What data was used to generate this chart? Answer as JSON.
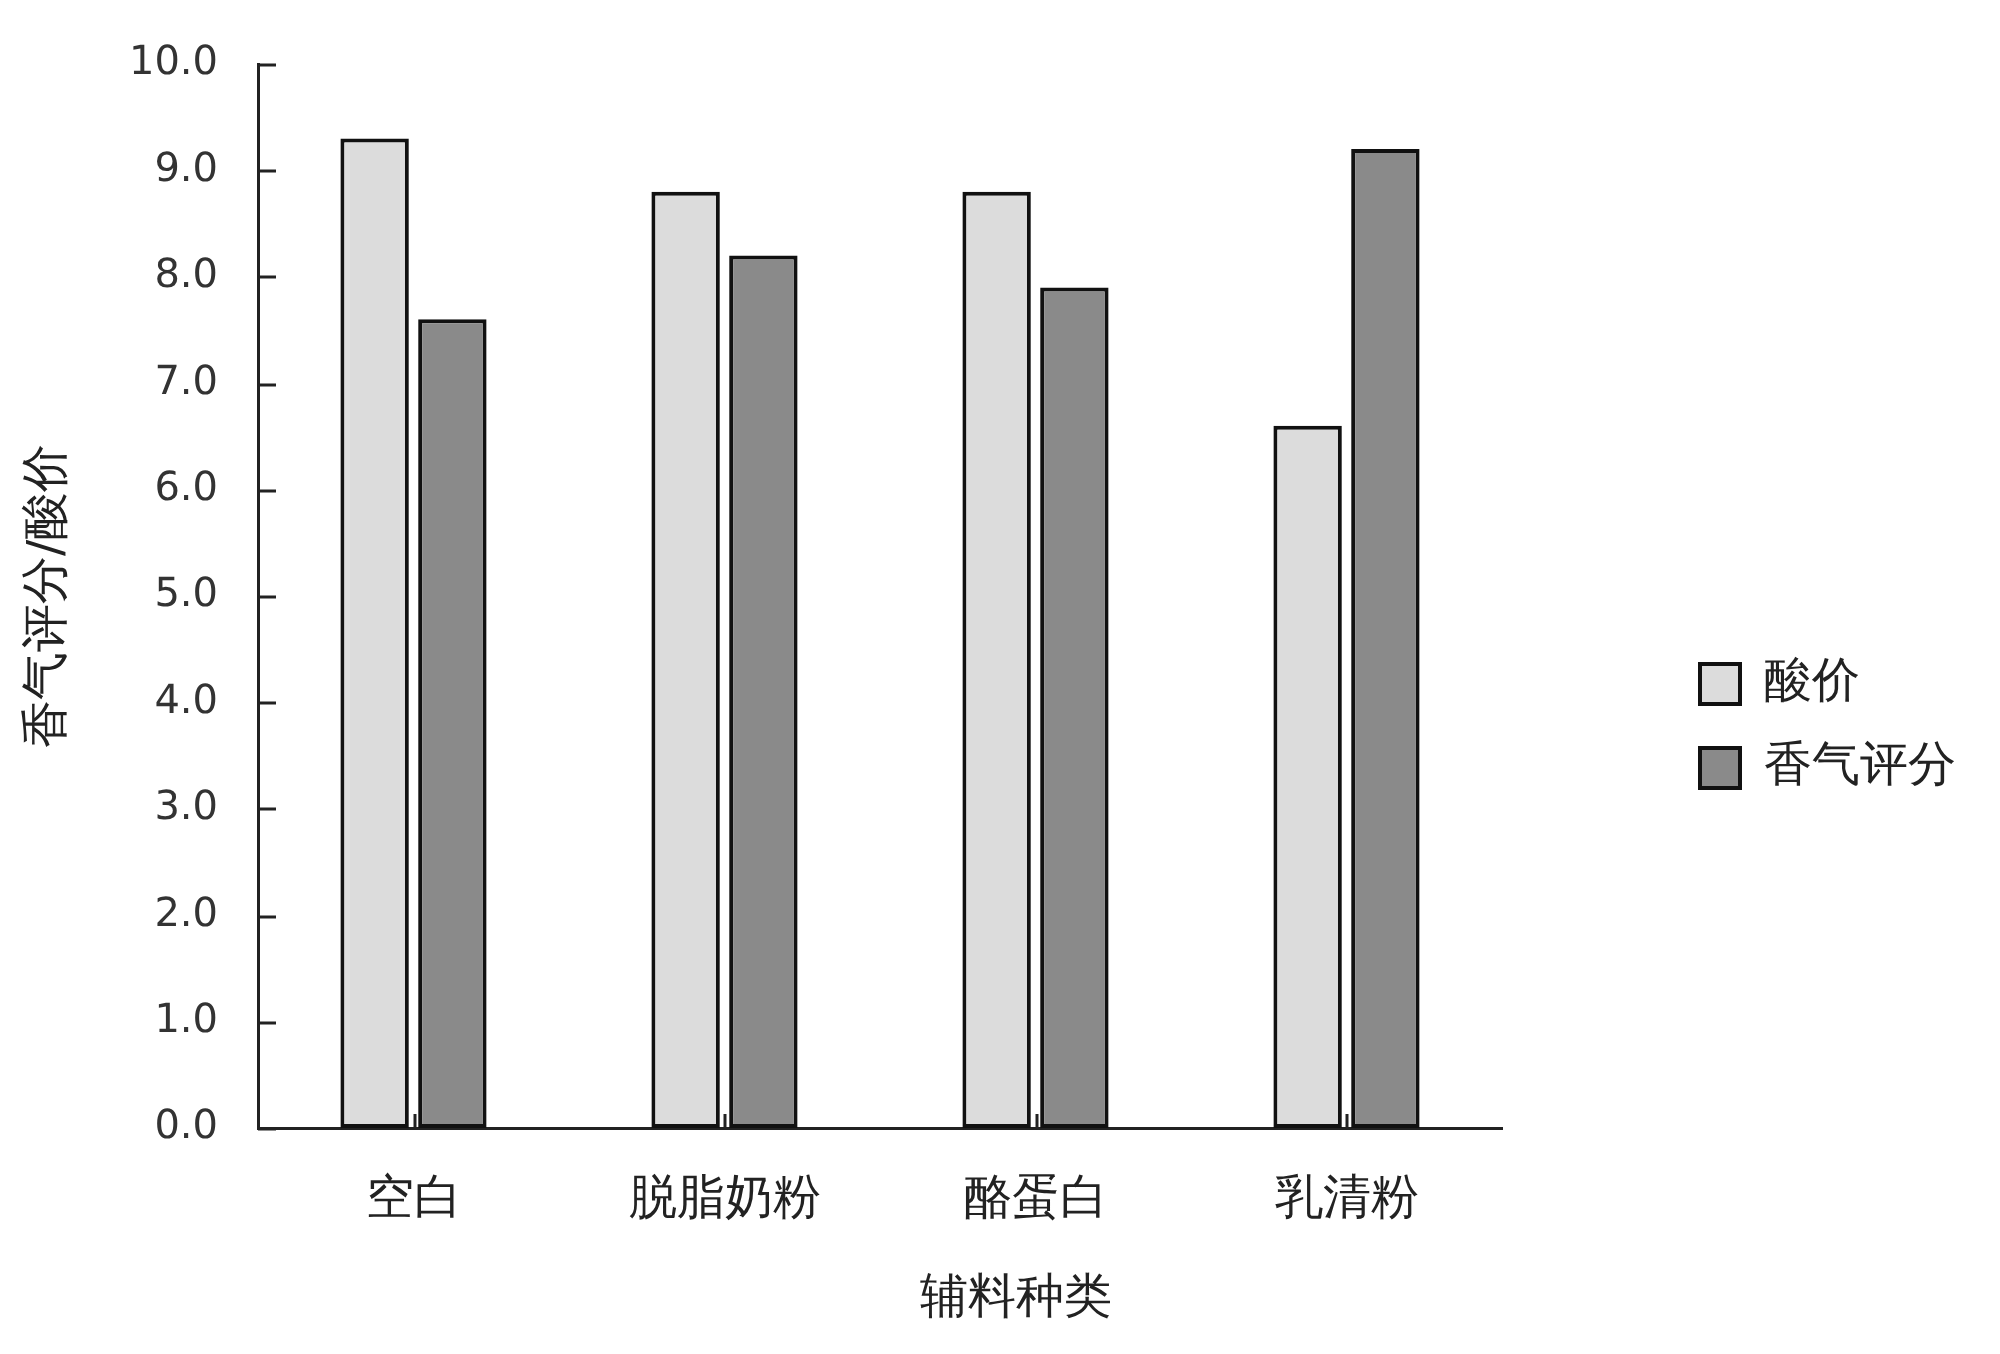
{
  "chart_data": {
    "type": "bar",
    "xlabel": "辅料种类",
    "ylabel": "香气评分/酸价",
    "categories": [
      "空白",
      "脱脂奶粉",
      "酪蛋白",
      "乳清粉"
    ],
    "series": [
      {
        "name": "酸价",
        "color": "#dcdcdc",
        "values": [
          9.3,
          8.8,
          8.8,
          6.6
        ]
      },
      {
        "name": "香气评分",
        "color": "#8a8a8a",
        "values": [
          7.6,
          8.2,
          7.9,
          9.2
        ]
      }
    ],
    "ylim": [
      0,
      10
    ],
    "yticks": [
      {
        "value": 0,
        "label": "0.0"
      },
      {
        "value": 1,
        "label": "1.0"
      },
      {
        "value": 2,
        "label": "2.0"
      },
      {
        "value": 3,
        "label": "3.0"
      },
      {
        "value": 4,
        "label": "4.0"
      },
      {
        "value": 5,
        "label": "5.0"
      },
      {
        "value": 6,
        "label": "6.0"
      },
      {
        "value": 7,
        "label": "7.0"
      },
      {
        "value": 8,
        "label": "8.0"
      },
      {
        "value": 9,
        "label": "9.0"
      },
      {
        "value": 10,
        "label": "10.0"
      }
    ],
    "grid": false,
    "legend": "right"
  }
}
